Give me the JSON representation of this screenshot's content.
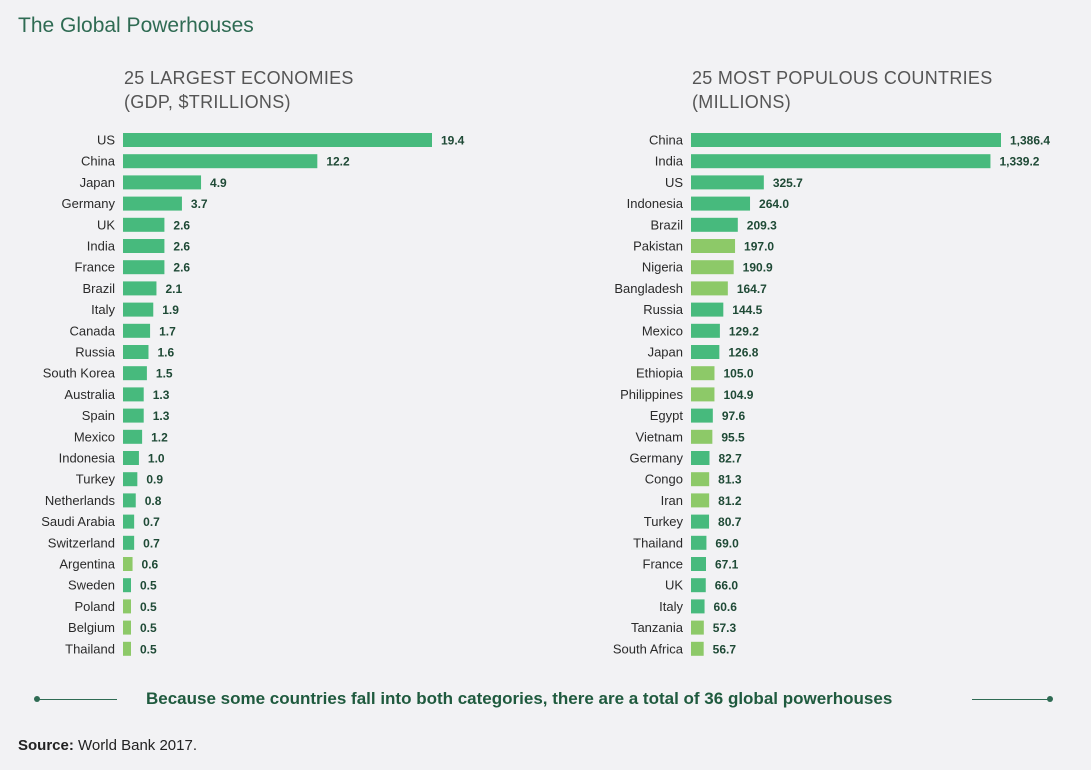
{
  "title": "The Global Powerhouses",
  "colors": {
    "dark_green": "#47ba7d",
    "light_green": "#8dc968",
    "title_green": "#2f6b53"
  },
  "footnote": "Because some countries fall into both categories, there are a total of 36 global powerhouses",
  "source": {
    "label": "Source:",
    "text": "World Bank 2017."
  },
  "chart_data": [
    {
      "type": "bar",
      "orientation": "horizontal",
      "title_line1": "25 LARGEST ECONOMIES",
      "title_line2": "(GDP, $TRILLIONS)",
      "categories": [
        "US",
        "China",
        "Japan",
        "Germany",
        "UK",
        "India",
        "France",
        "Brazil",
        "Italy",
        "Canada",
        "Russia",
        "South Korea",
        "Australia",
        "Spain",
        "Mexico",
        "Indonesia",
        "Turkey",
        "Netherlands",
        "Saudi Arabia",
        "Switzerland",
        "Argentina",
        "Sweden",
        "Poland",
        "Belgium",
        "Thailand"
      ],
      "values": [
        19.4,
        12.2,
        4.9,
        3.7,
        2.6,
        2.6,
        2.6,
        2.1,
        1.9,
        1.7,
        1.6,
        1.5,
        1.3,
        1.3,
        1.2,
        1.0,
        0.9,
        0.8,
        0.7,
        0.7,
        0.6,
        0.5,
        0.5,
        0.5,
        0.5
      ],
      "labels": [
        "19.4",
        "12.2",
        "4.9",
        "3.7",
        "2.6",
        "2.6",
        "2.6",
        "2.1",
        "1.9",
        "1.7",
        "1.6",
        "1.5",
        "1.3",
        "1.3",
        "1.2",
        "1.0",
        "0.9",
        "0.8",
        "0.7",
        "0.7",
        "0.6",
        "0.5",
        "0.5",
        "0.5",
        "0.5"
      ],
      "highlight": [
        0,
        0,
        0,
        0,
        0,
        0,
        0,
        0,
        0,
        0,
        0,
        0,
        0,
        0,
        0,
        0,
        0,
        0,
        0,
        0,
        1,
        0,
        1,
        1,
        1
      ]
    },
    {
      "type": "bar",
      "orientation": "horizontal",
      "title_line1": "25 MOST POPULOUS COUNTRIES",
      "title_line2": "(MILLIONS)",
      "categories": [
        "China",
        "India",
        "US",
        "Indonesia",
        "Brazil",
        "Pakistan",
        "Nigeria",
        "Bangladesh",
        "Russia",
        "Mexico",
        "Japan",
        "Ethiopia",
        "Philippines",
        "Egypt",
        "Vietnam",
        "Germany",
        "Congo",
        "Iran",
        "Turkey",
        "Thailand",
        "France",
        "UK",
        "Italy",
        "Tanzania",
        "South Africa"
      ],
      "values": [
        1386.4,
        1339.2,
        325.7,
        264.0,
        209.3,
        197.0,
        190.9,
        164.7,
        144.5,
        129.2,
        126.8,
        105.0,
        104.9,
        97.6,
        95.5,
        82.7,
        81.3,
        81.2,
        80.7,
        69.0,
        67.1,
        66.0,
        60.6,
        57.3,
        56.7
      ],
      "labels": [
        "1,386.4",
        "1,339.2",
        "325.7",
        "264.0",
        "209.3",
        "197.0",
        "190.9",
        "164.7",
        "144.5",
        "129.2",
        "126.8",
        "105.0",
        "104.9",
        "97.6",
        "95.5",
        "82.7",
        "81.3",
        "81.2",
        "80.7",
        "69.0",
        "67.1",
        "66.0",
        "60.6",
        "57.3",
        "56.7"
      ],
      "highlight": [
        0,
        0,
        0,
        0,
        0,
        1,
        1,
        1,
        0,
        0,
        0,
        1,
        1,
        0,
        1,
        0,
        1,
        1,
        0,
        0,
        0,
        0,
        0,
        1,
        1
      ]
    }
  ]
}
